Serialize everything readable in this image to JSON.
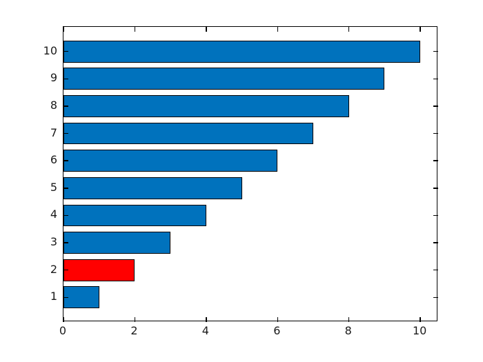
{
  "figure": {
    "background_color": "#ffffff",
    "title": ""
  },
  "chart_data": {
    "type": "bar",
    "orientation": "horizontal",
    "title": "",
    "xlabel": "",
    "ylabel": "",
    "categories": [
      "1",
      "2",
      "3",
      "4",
      "5",
      "6",
      "7",
      "8",
      "9",
      "10"
    ],
    "values": [
      1,
      2,
      3,
      4,
      5,
      6,
      7,
      8,
      9,
      10
    ],
    "bar_colors": [
      "#0072BD",
      "#FF0000",
      "#0072BD",
      "#0072BD",
      "#0072BD",
      "#0072BD",
      "#0072BD",
      "#0072BD",
      "#0072BD",
      "#0072BD"
    ],
    "default_bar_color": "#0072BD",
    "highlight_bar_color": "#FF0000",
    "highlighted_category": "2",
    "bar_edge_color": "#000000",
    "x_tick_labels": [
      "0",
      "2",
      "4",
      "6",
      "8",
      "10"
    ],
    "x_tick_values": [
      0,
      2,
      4,
      6,
      8,
      10
    ],
    "y_tick_labels": [
      "1",
      "2",
      "3",
      "4",
      "5",
      "6",
      "7",
      "8",
      "9",
      "10"
    ],
    "y_tick_values": [
      1,
      2,
      3,
      4,
      5,
      6,
      7,
      8,
      9,
      10
    ],
    "xlim": [
      0,
      10.5
    ],
    "ylim": [
      0.1,
      10.9
    ],
    "bar_relative_height": 0.8,
    "grid": false,
    "legend": null,
    "box": true,
    "tick_direction": "in",
    "tick_color": "#000000",
    "tick_label_color": "#1a1a1a"
  }
}
